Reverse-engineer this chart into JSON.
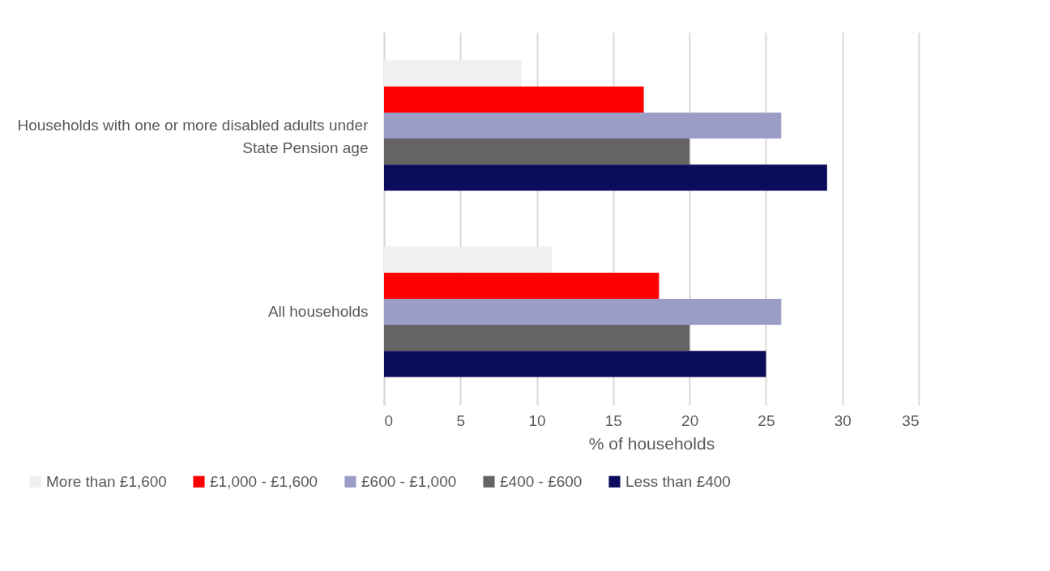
{
  "chart_data": {
    "type": "bar",
    "orientation": "horizontal",
    "xlabel": "% of households",
    "categories": [
      "Households with one or more disabled adults under State Pension age",
      "All households"
    ],
    "series": [
      {
        "name": "More than £1,600",
        "color": "#eef0f2",
        "values": [
          9,
          11
        ]
      },
      {
        "name": "£1,000 - £1,600",
        "color": "#ff0000",
        "values": [
          17,
          18
        ]
      },
      {
        "name": "£600 - £1,000",
        "color": "#9b9dc7",
        "values": [
          26,
          26
        ]
      },
      {
        "name": "£400 - £600",
        "color": "#646464",
        "values": [
          20,
          20
        ]
      },
      {
        "name": "Less than £400",
        "color": "#0c0c5c",
        "values": [
          29,
          25
        ]
      }
    ],
    "xlim": [
      0,
      35
    ],
    "xticks": [
      0,
      5,
      10,
      15,
      20,
      25,
      30,
      35
    ],
    "grid": "x",
    "legend": "bottom"
  }
}
